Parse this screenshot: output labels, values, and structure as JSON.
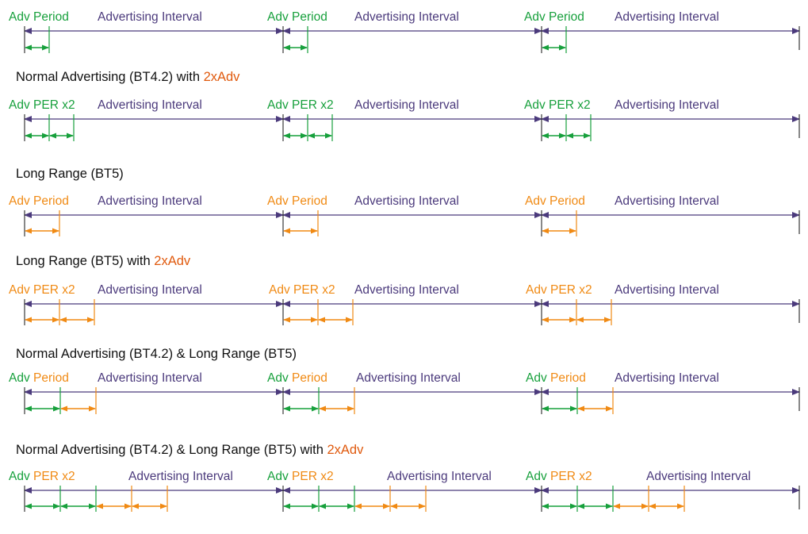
{
  "colors": {
    "text": "#111111",
    "green": "#17a03c",
    "orange": "#f08a14",
    "purple": "#4b3a7c",
    "highlight": "#e05a0e"
  },
  "row_groups": [
    {
      "title": "",
      "title_highlight": "",
      "labels": [
        {
          "segments": [
            {
              "text": "Adv Period",
              "color": "green"
            }
          ],
          "interval": "Advertising Interval"
        },
        {
          "segments": [
            {
              "text": "Adv Period",
              "color": "green"
            }
          ],
          "interval": "Advertising Interval"
        },
        {
          "segments": [
            {
              "text": "Adv Period",
              "color": "green"
            }
          ],
          "interval": "Advertising Interval"
        }
      ],
      "periods": [
        "green"
      ]
    },
    {
      "title": "Normal Advertising (BT4.2) with ",
      "title_highlight": "2xAdv",
      "labels": [
        {
          "segments": [
            {
              "text": "Adv PER x2",
              "color": "green"
            }
          ],
          "interval": "Advertising Interval"
        },
        {
          "segments": [
            {
              "text": "Adv PER x2",
              "color": "green"
            }
          ],
          "interval": "Advertising Interval"
        },
        {
          "segments": [
            {
              "text": "Adv PER x2",
              "color": "green"
            }
          ],
          "interval": "Advertising Interval"
        }
      ],
      "periods": [
        "green",
        "green"
      ]
    },
    {
      "title": "Long Range (BT5)",
      "title_highlight": "",
      "labels": [
        {
          "segments": [
            {
              "text": "Adv Period",
              "color": "orange"
            }
          ],
          "interval": "Advertising Interval"
        },
        {
          "segments": [
            {
              "text": "Adv Period",
              "color": "orange"
            }
          ],
          "interval": "Advertising Interval"
        },
        {
          "segments": [
            {
              "text": "Adv Period",
              "color": "orange"
            }
          ],
          "interval": "Advertising Interval"
        }
      ],
      "periods": [
        "orange"
      ]
    },
    {
      "title": "Long Range (BT5) with ",
      "title_highlight": "2xAdv",
      "labels": [
        {
          "segments": [
            {
              "text": "Adv PER x2",
              "color": "orange"
            }
          ],
          "interval": "Advertising Interval"
        },
        {
          "segments": [
            {
              "text": "Adv PER x2",
              "color": "orange"
            }
          ],
          "interval": "Advertising Interval"
        },
        {
          "segments": [
            {
              "text": "Adv PER x2",
              "color": "orange"
            }
          ],
          "interval": "Advertising Interval"
        }
      ],
      "periods": [
        "orange",
        "orange"
      ]
    },
    {
      "title": "Normal Advertising (BT4.2) & Long Range (BT5)",
      "title_highlight": "",
      "labels": [
        {
          "segments": [
            {
              "text": "Adv ",
              "color": "green"
            },
            {
              "text": "Period",
              "color": "orange"
            }
          ],
          "interval": "Advertising Interval"
        },
        {
          "segments": [
            {
              "text": "Adv ",
              "color": "green"
            },
            {
              "text": "Period",
              "color": "orange"
            }
          ],
          "interval": "Advertising Interval"
        },
        {
          "segments": [
            {
              "text": "Adv ",
              "color": "green"
            },
            {
              "text": "Period",
              "color": "orange"
            }
          ],
          "interval": "Advertising Interval"
        }
      ],
      "periods": [
        "green",
        "orange"
      ]
    },
    {
      "title": "Normal Advertising (BT4.2) & Long Range (BT5) with ",
      "title_highlight": "2xAdv",
      "labels": [
        {
          "segments": [
            {
              "text": "Adv ",
              "color": "green"
            },
            {
              "text": "PER x2",
              "color": "orange"
            }
          ],
          "interval": "Advertising Interval"
        },
        {
          "segments": [
            {
              "text": "Adv ",
              "color": "green"
            },
            {
              "text": "PER x2",
              "color": "orange"
            }
          ],
          "interval": "Advertising Interval"
        },
        {
          "segments": [
            {
              "text": "Adv ",
              "color": "green"
            },
            {
              "text": "PER x2",
              "color": "orange"
            }
          ],
          "interval": "Advertising Interval"
        }
      ],
      "periods": [
        "green",
        "green",
        "orange",
        "orange"
      ]
    }
  ]
}
